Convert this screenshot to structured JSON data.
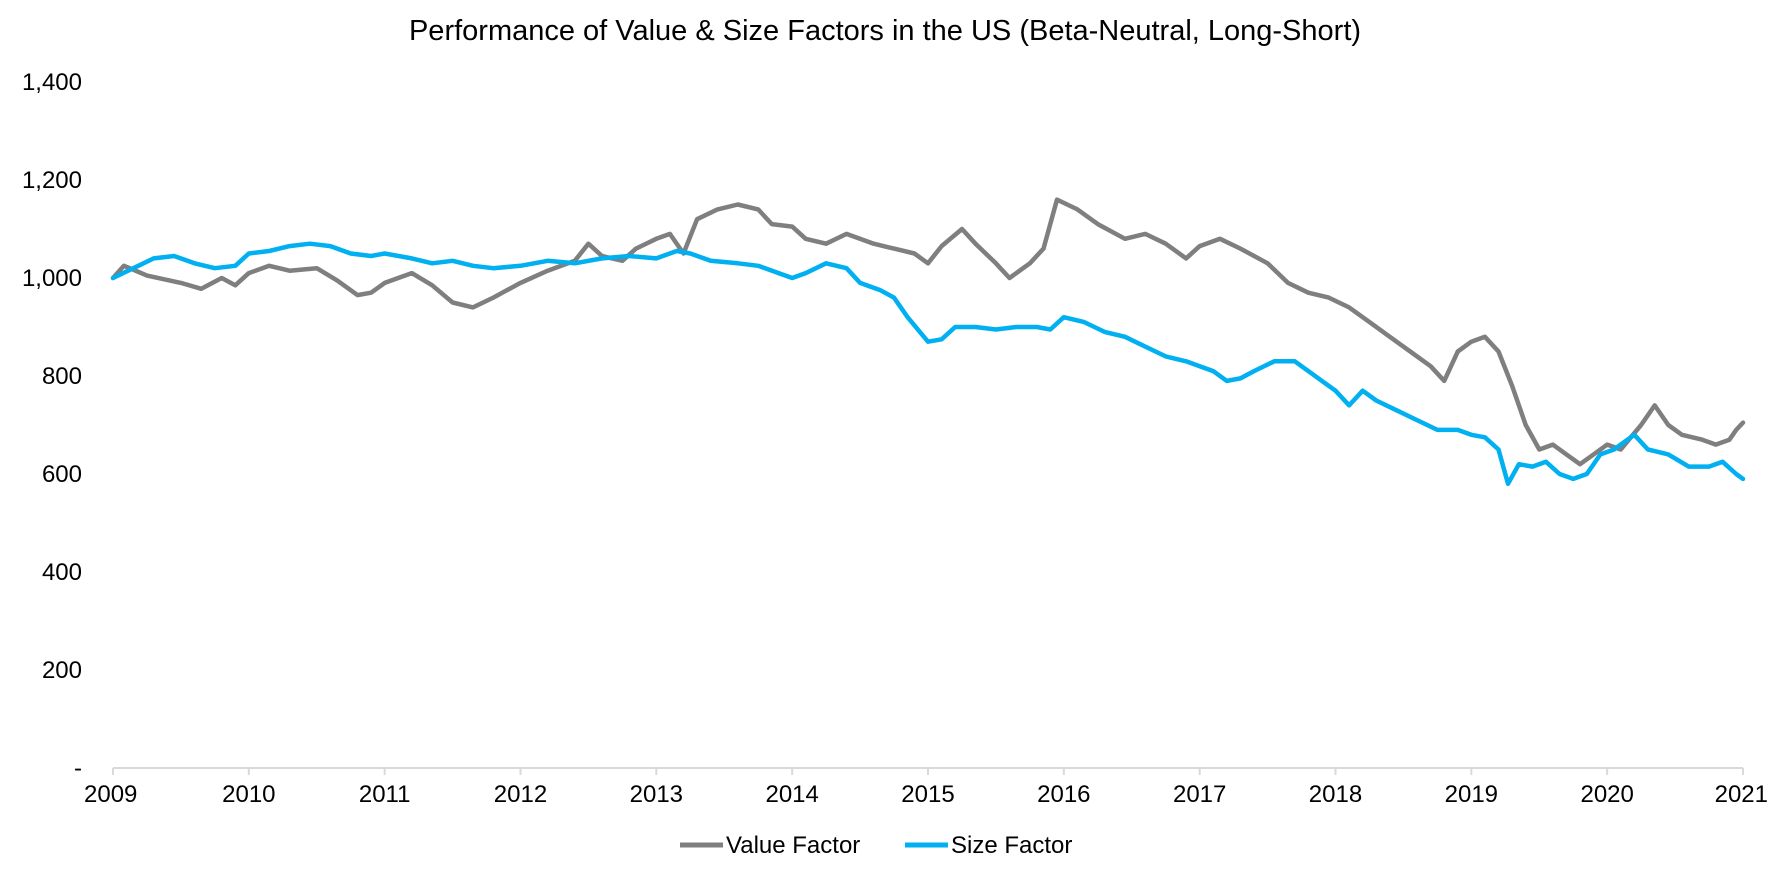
{
  "chart_data": {
    "type": "line",
    "title": "Performance of Value & Size Factors in the US (Beta-Neutral, Long-Short)",
    "xlabel": "",
    "ylabel": "",
    "xlim": [
      2009,
      2021
    ],
    "ylim": [
      0,
      1400
    ],
    "x_ticks": [
      2009,
      2010,
      2011,
      2012,
      2013,
      2014,
      2015,
      2016,
      2017,
      2018,
      2019,
      2020,
      2021
    ],
    "x_tick_labels": [
      "2009",
      "2010",
      "2011",
      "2012",
      "2013",
      "2014",
      "2015",
      "2016",
      "2017",
      "2018",
      "2019",
      "2020",
      "2021"
    ],
    "y_ticks": [
      0,
      200,
      400,
      600,
      800,
      1000,
      1200,
      1400
    ],
    "y_tick_labels": [
      "-",
      "200",
      "400",
      "600",
      "800",
      "1,000",
      "1,200",
      "1,400"
    ],
    "grid": false,
    "legend_position": "bottom",
    "series": [
      {
        "name": "Value Factor",
        "color": "#7f7f7f",
        "points": [
          [
            2009.0,
            1000
          ],
          [
            2009.08,
            1025
          ],
          [
            2009.25,
            1005
          ],
          [
            2009.5,
            990
          ],
          [
            2009.65,
            978
          ],
          [
            2009.8,
            1000
          ],
          [
            2009.9,
            985
          ],
          [
            2010.0,
            1010
          ],
          [
            2010.15,
            1025
          ],
          [
            2010.3,
            1015
          ],
          [
            2010.5,
            1020
          ],
          [
            2010.65,
            995
          ],
          [
            2010.8,
            965
          ],
          [
            2010.9,
            970
          ],
          [
            2011.0,
            990
          ],
          [
            2011.2,
            1010
          ],
          [
            2011.35,
            985
          ],
          [
            2011.5,
            950
          ],
          [
            2011.65,
            940
          ],
          [
            2011.8,
            960
          ],
          [
            2012.0,
            990
          ],
          [
            2012.2,
            1015
          ],
          [
            2012.4,
            1035
          ],
          [
            2012.5,
            1070
          ],
          [
            2012.6,
            1045
          ],
          [
            2012.75,
            1035
          ],
          [
            2012.85,
            1060
          ],
          [
            2013.0,
            1080
          ],
          [
            2013.1,
            1090
          ],
          [
            2013.2,
            1050
          ],
          [
            2013.3,
            1120
          ],
          [
            2013.45,
            1140
          ],
          [
            2013.6,
            1150
          ],
          [
            2013.75,
            1140
          ],
          [
            2013.85,
            1110
          ],
          [
            2014.0,
            1105
          ],
          [
            2014.1,
            1080
          ],
          [
            2014.25,
            1070
          ],
          [
            2014.4,
            1090
          ],
          [
            2014.6,
            1070
          ],
          [
            2014.75,
            1060
          ],
          [
            2014.9,
            1050
          ],
          [
            2015.0,
            1030
          ],
          [
            2015.1,
            1065
          ],
          [
            2015.25,
            1100
          ],
          [
            2015.35,
            1070
          ],
          [
            2015.5,
            1030
          ],
          [
            2015.6,
            1000
          ],
          [
            2015.75,
            1030
          ],
          [
            2015.85,
            1060
          ],
          [
            2015.95,
            1160
          ],
          [
            2016.1,
            1140
          ],
          [
            2016.25,
            1110
          ],
          [
            2016.45,
            1080
          ],
          [
            2016.6,
            1090
          ],
          [
            2016.75,
            1070
          ],
          [
            2016.9,
            1040
          ],
          [
            2017.0,
            1065
          ],
          [
            2017.15,
            1080
          ],
          [
            2017.3,
            1060
          ],
          [
            2017.5,
            1030
          ],
          [
            2017.65,
            990
          ],
          [
            2017.8,
            970
          ],
          [
            2017.95,
            960
          ],
          [
            2018.1,
            940
          ],
          [
            2018.25,
            910
          ],
          [
            2018.4,
            880
          ],
          [
            2018.55,
            850
          ],
          [
            2018.7,
            820
          ],
          [
            2018.8,
            790
          ],
          [
            2018.9,
            850
          ],
          [
            2019.0,
            870
          ],
          [
            2019.1,
            880
          ],
          [
            2019.2,
            850
          ],
          [
            2019.3,
            780
          ],
          [
            2019.4,
            700
          ],
          [
            2019.5,
            650
          ],
          [
            2019.6,
            660
          ],
          [
            2019.7,
            640
          ],
          [
            2019.8,
            620
          ],
          [
            2019.9,
            640
          ],
          [
            2020.0,
            660
          ],
          [
            2020.1,
            650
          ],
          [
            2020.25,
            700
          ],
          [
            2020.35,
            740
          ],
          [
            2020.45,
            700
          ],
          [
            2020.55,
            680
          ],
          [
            2020.7,
            670
          ],
          [
            2020.8,
            660
          ],
          [
            2020.9,
            670
          ],
          [
            2020.95,
            690
          ],
          [
            2021.0,
            705
          ]
        ]
      },
      {
        "name": "Size Factor",
        "color": "#00b0f0",
        "points": [
          [
            2009.0,
            1000
          ],
          [
            2009.15,
            1020
          ],
          [
            2009.3,
            1040
          ],
          [
            2009.45,
            1045
          ],
          [
            2009.6,
            1030
          ],
          [
            2009.75,
            1020
          ],
          [
            2009.9,
            1025
          ],
          [
            2010.0,
            1050
          ],
          [
            2010.15,
            1055
          ],
          [
            2010.3,
            1065
          ],
          [
            2010.45,
            1070
          ],
          [
            2010.6,
            1065
          ],
          [
            2010.75,
            1050
          ],
          [
            2010.9,
            1045
          ],
          [
            2011.0,
            1050
          ],
          [
            2011.2,
            1040
          ],
          [
            2011.35,
            1030
          ],
          [
            2011.5,
            1035
          ],
          [
            2011.65,
            1025
          ],
          [
            2011.8,
            1020
          ],
          [
            2012.0,
            1025
          ],
          [
            2012.2,
            1035
          ],
          [
            2012.4,
            1030
          ],
          [
            2012.6,
            1040
          ],
          [
            2012.8,
            1045
          ],
          [
            2013.0,
            1040
          ],
          [
            2013.15,
            1055
          ],
          [
            2013.25,
            1050
          ],
          [
            2013.4,
            1035
          ],
          [
            2013.6,
            1030
          ],
          [
            2013.75,
            1025
          ],
          [
            2013.9,
            1010
          ],
          [
            2014.0,
            1000
          ],
          [
            2014.1,
            1010
          ],
          [
            2014.25,
            1030
          ],
          [
            2014.4,
            1020
          ],
          [
            2014.5,
            990
          ],
          [
            2014.65,
            975
          ],
          [
            2014.75,
            960
          ],
          [
            2014.85,
            920
          ],
          [
            2015.0,
            870
          ],
          [
            2015.1,
            875
          ],
          [
            2015.2,
            900
          ],
          [
            2015.35,
            900
          ],
          [
            2015.5,
            895
          ],
          [
            2015.65,
            900
          ],
          [
            2015.8,
            900
          ],
          [
            2015.9,
            895
          ],
          [
            2016.0,
            920
          ],
          [
            2016.15,
            910
          ],
          [
            2016.3,
            890
          ],
          [
            2016.45,
            880
          ],
          [
            2016.6,
            860
          ],
          [
            2016.75,
            840
          ],
          [
            2016.9,
            830
          ],
          [
            2017.0,
            820
          ],
          [
            2017.1,
            810
          ],
          [
            2017.2,
            790
          ],
          [
            2017.3,
            795
          ],
          [
            2017.4,
            810
          ],
          [
            2017.55,
            830
          ],
          [
            2017.7,
            830
          ],
          [
            2017.8,
            810
          ],
          [
            2017.9,
            790
          ],
          [
            2018.0,
            770
          ],
          [
            2018.1,
            740
          ],
          [
            2018.2,
            770
          ],
          [
            2018.3,
            750
          ],
          [
            2018.45,
            730
          ],
          [
            2018.6,
            710
          ],
          [
            2018.75,
            690
          ],
          [
            2018.9,
            690
          ],
          [
            2019.0,
            680
          ],
          [
            2019.1,
            675
          ],
          [
            2019.2,
            650
          ],
          [
            2019.27,
            580
          ],
          [
            2019.35,
            620
          ],
          [
            2019.45,
            615
          ],
          [
            2019.55,
            625
          ],
          [
            2019.65,
            600
          ],
          [
            2019.75,
            590
          ],
          [
            2019.85,
            600
          ],
          [
            2019.95,
            640
          ],
          [
            2020.05,
            650
          ],
          [
            2020.15,
            670
          ],
          [
            2020.2,
            680
          ],
          [
            2020.3,
            650
          ],
          [
            2020.45,
            640
          ],
          [
            2020.6,
            615
          ],
          [
            2020.75,
            615
          ],
          [
            2020.85,
            625
          ],
          [
            2020.95,
            600
          ],
          [
            2021.0,
            590
          ]
        ]
      }
    ]
  }
}
